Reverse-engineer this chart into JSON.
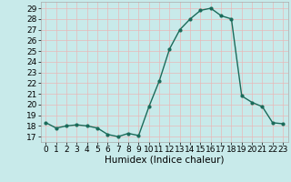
{
  "x": [
    0,
    1,
    2,
    3,
    4,
    5,
    6,
    7,
    8,
    9,
    10,
    11,
    12,
    13,
    14,
    15,
    16,
    17,
    18,
    19,
    20,
    21,
    22,
    23
  ],
  "y": [
    18.3,
    17.8,
    18.0,
    18.1,
    18.0,
    17.8,
    17.2,
    17.0,
    17.3,
    17.1,
    19.8,
    22.2,
    25.2,
    27.0,
    28.0,
    28.8,
    29.0,
    28.3,
    28.0,
    20.8,
    20.2,
    19.8,
    18.3,
    18.2
  ],
  "line_color": "#1a6b5a",
  "marker": "o",
  "markersize": 2.0,
  "linewidth": 1.0,
  "xlabel": "Humidex (Indice chaleur)",
  "ylim_min": 16.5,
  "ylim_max": 29.6,
  "yticks": [
    17,
    18,
    19,
    20,
    21,
    22,
    23,
    24,
    25,
    26,
    27,
    28,
    29
  ],
  "xticks": [
    0,
    1,
    2,
    3,
    4,
    5,
    6,
    7,
    8,
    9,
    10,
    11,
    12,
    13,
    14,
    15,
    16,
    17,
    18,
    19,
    20,
    21,
    22,
    23
  ],
  "bg_color": "#c8eaea",
  "grid_color": "#e8f8f8",
  "tick_fontsize": 6.5,
  "xlabel_fontsize": 7.5
}
